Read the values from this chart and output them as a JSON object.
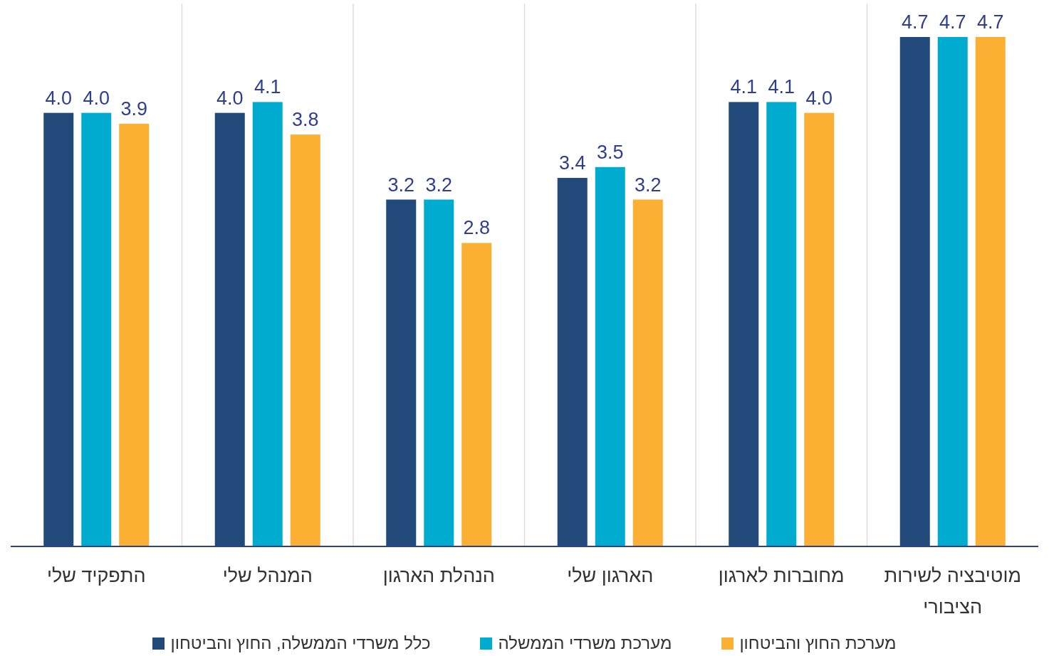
{
  "chart_data": {
    "type": "bar",
    "categories": [
      "התפקיד שלי",
      "המנהל שלי",
      "הנהלת הארגון",
      "הארגון שלי",
      "מחוברות לארגון",
      "מוטיבציה לשירות הציבורי"
    ],
    "series": [
      {
        "name": "כלל משרדי הממשלה, החוץ והביטחון",
        "color": "#21497a",
        "values": [
          4.0,
          4.0,
          3.2,
          3.4,
          4.1,
          4.7
        ],
        "value_labels": [
          "4.0",
          "4.0",
          "3.2",
          "3.4",
          "4.1",
          "4.7"
        ]
      },
      {
        "name": "מערכת משרדי הממשלה",
        "color": "#00abd0",
        "values": [
          4.0,
          4.1,
          3.2,
          3.5,
          4.1,
          4.7
        ],
        "value_labels": [
          "4.0",
          "4.1",
          "3.2",
          "3.5",
          "4.1",
          "4.7"
        ]
      },
      {
        "name": "מערכת החוץ והביטחון",
        "color": "#fbb034",
        "values": [
          3.9,
          3.8,
          2.8,
          3.2,
          4.0,
          4.7
        ],
        "value_labels": [
          "3.9",
          "3.8",
          "2.8",
          "3.2",
          "4.0",
          "4.7"
        ]
      }
    ],
    "grid": "x",
    "legend": "bottom"
  }
}
